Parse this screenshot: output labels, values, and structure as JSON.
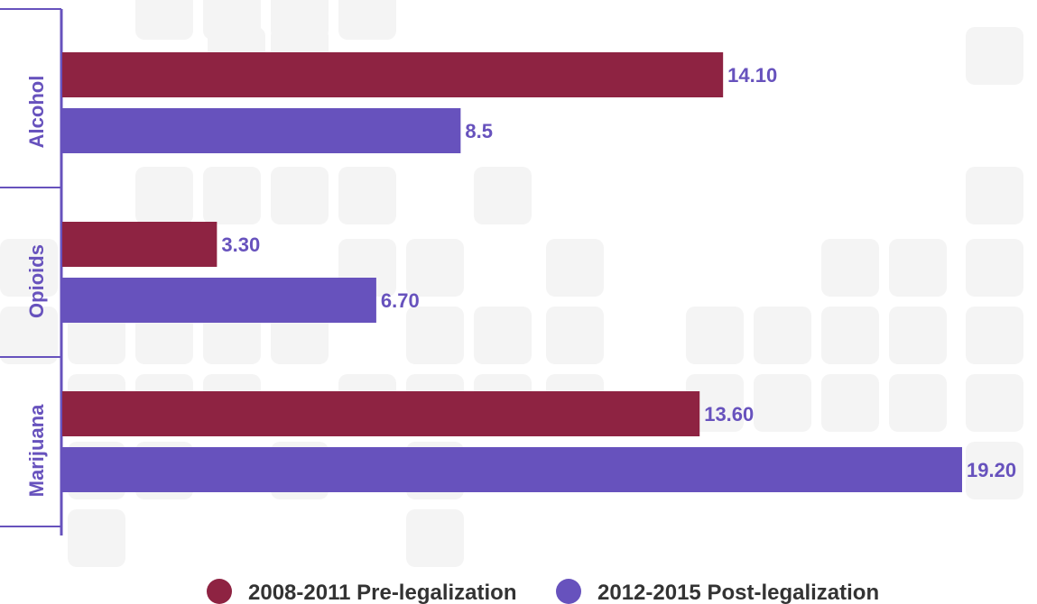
{
  "colors": {
    "pre": "#8e2342",
    "post": "#6752bd",
    "axis": "#6752bd",
    "label_text": "#6752bd",
    "background_tile": "#f4f4f4"
  },
  "chart_data": {
    "type": "bar",
    "orientation": "horizontal",
    "categories": [
      "Alcohol",
      "Opioids",
      "Marijuana"
    ],
    "series": [
      {
        "name": "2008-2011 Pre-legalization",
        "values": [
          14.1,
          3.3,
          13.6
        ],
        "labels": [
          "14.10",
          "3.30",
          "13.60"
        ]
      },
      {
        "name": "2012-2015 Post-legalization",
        "values": [
          8.5,
          6.7,
          19.2
        ],
        "labels": [
          "8.5",
          "6.70",
          "19.20"
        ]
      }
    ],
    "title": "",
    "xlabel": "",
    "ylabel": "",
    "xlim": [
      0,
      19.2
    ],
    "grid": false,
    "legend": "bottom"
  }
}
